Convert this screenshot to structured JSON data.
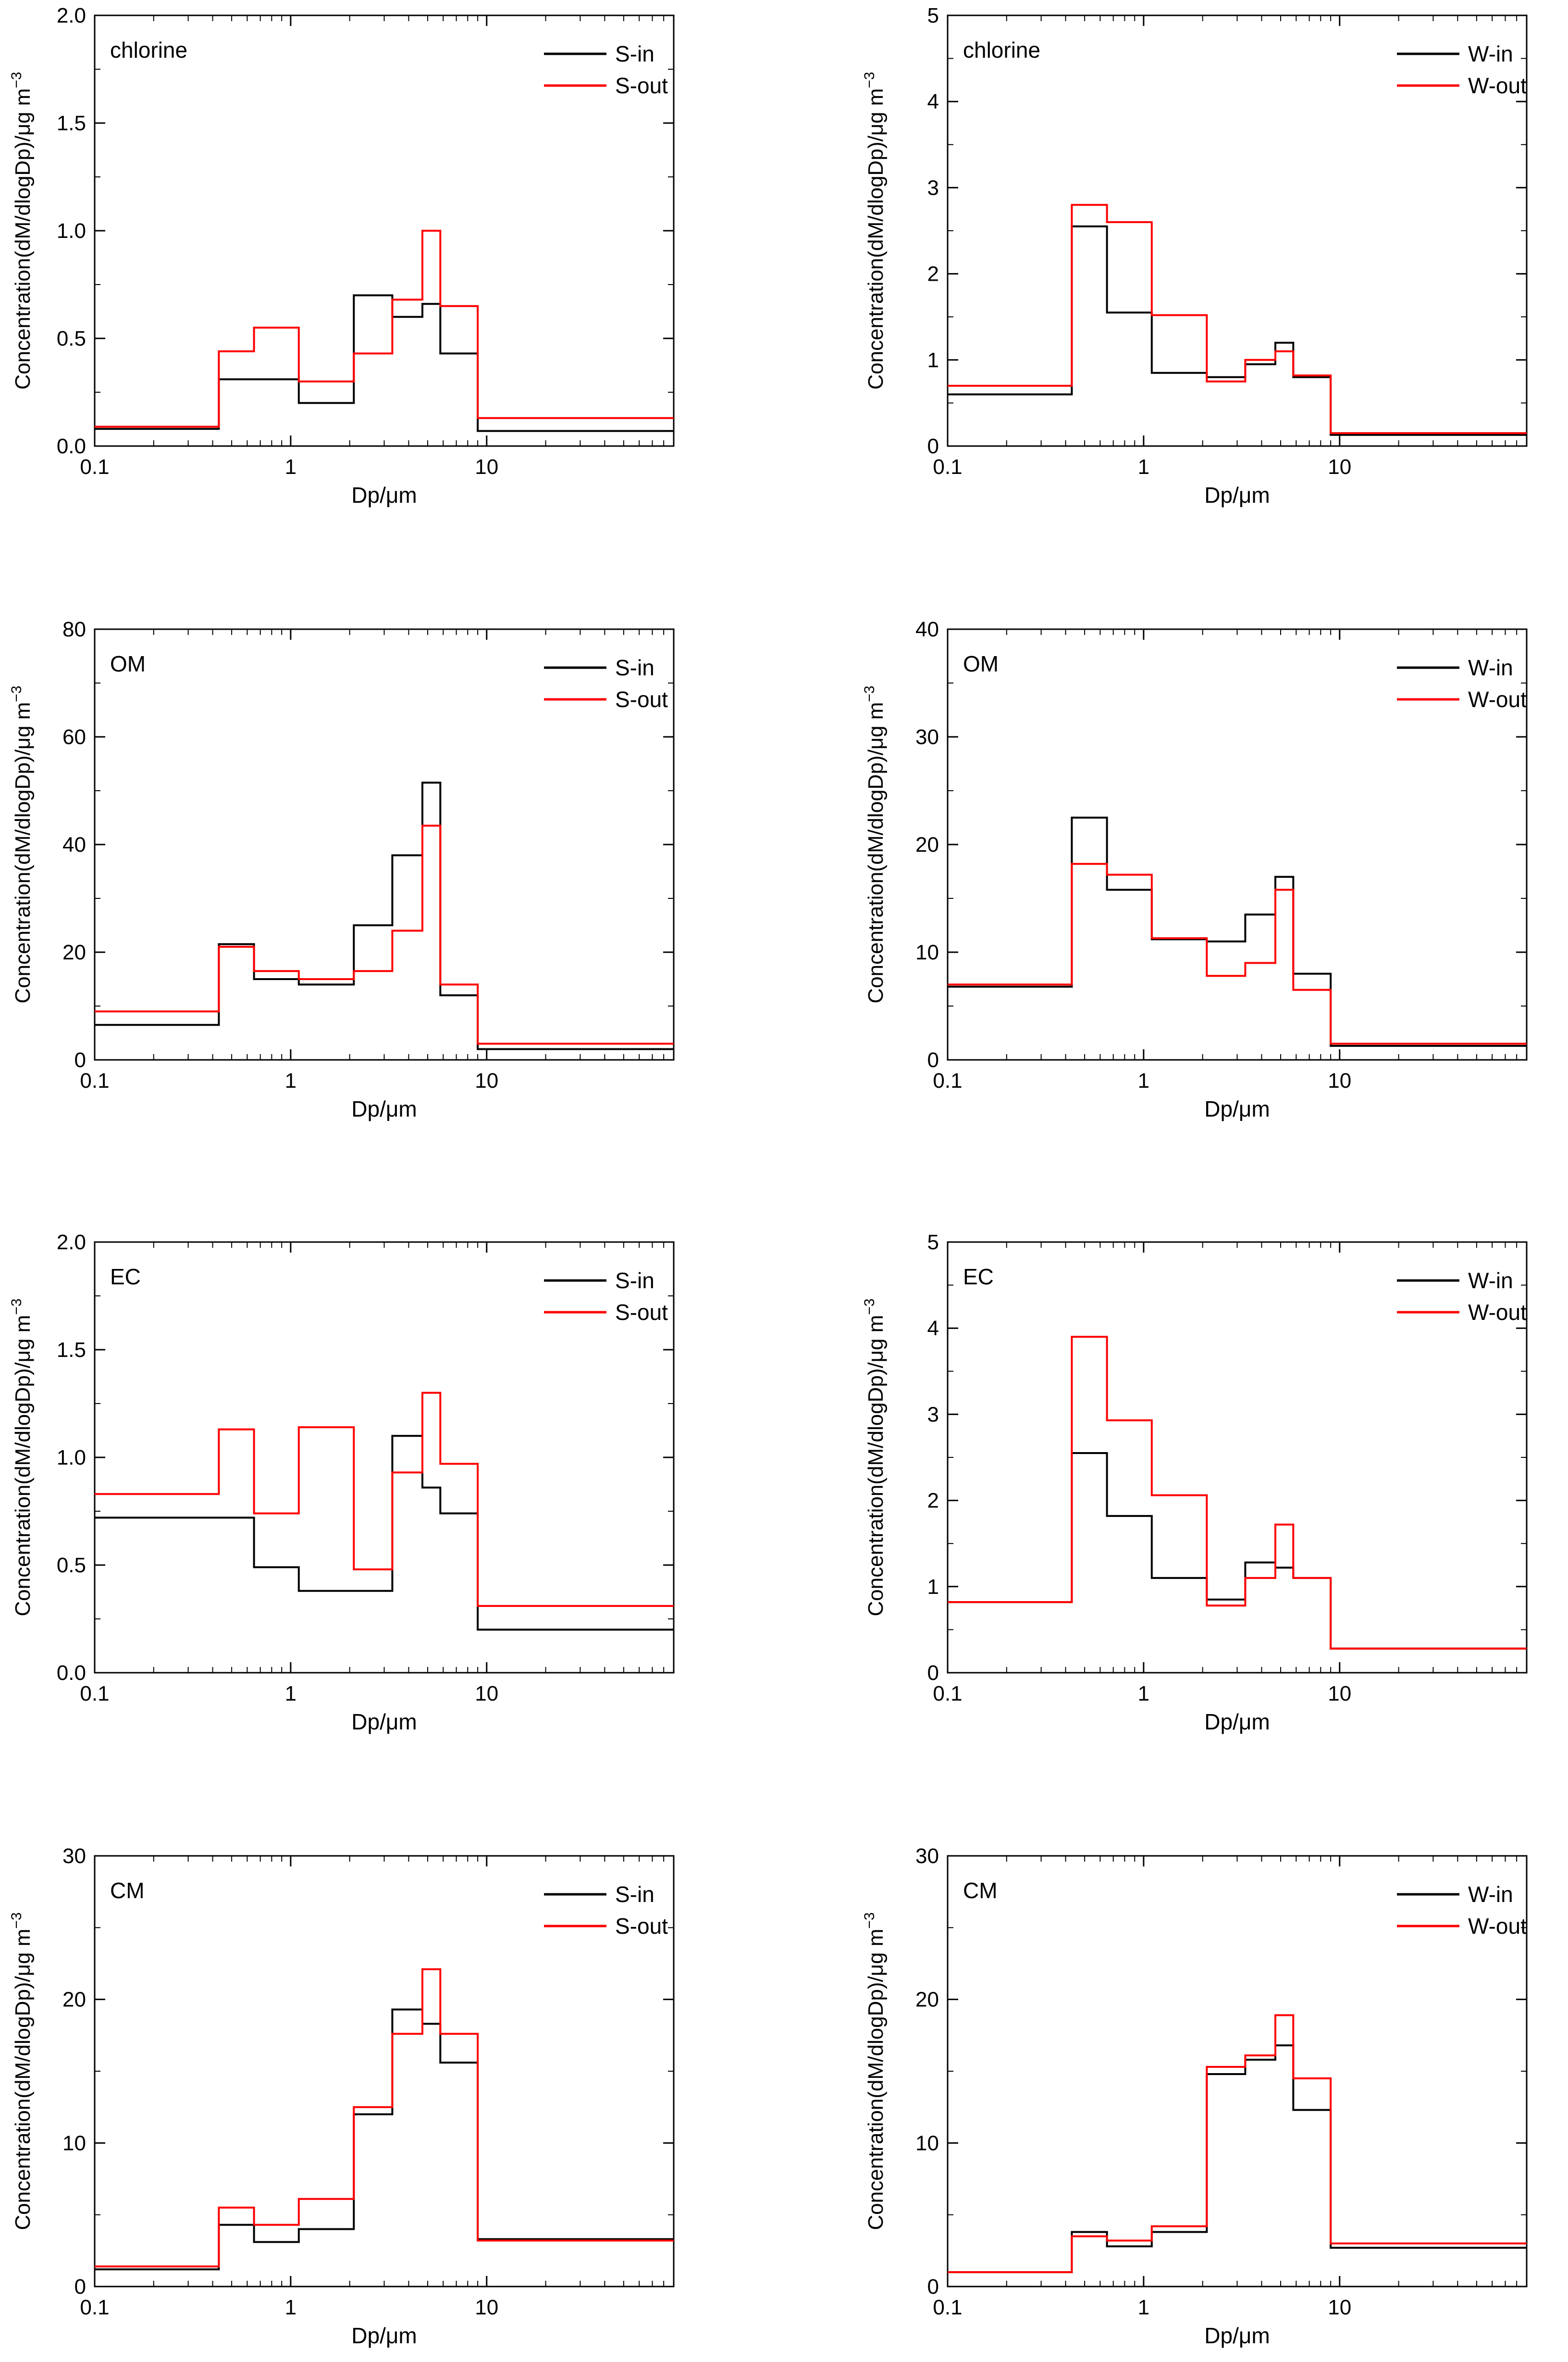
{
  "figure": {
    "x_label": "Dp/μm",
    "y_label_main": "Concentration(dM/dlogDp)/μg m",
    "y_label_sup": "−3"
  },
  "chart_data": [
    {
      "type": "line",
      "step": true,
      "title": "chlorine",
      "x_scale": "log",
      "xlim": [
        0.1,
        90
      ],
      "x_ticks": [
        "0.1",
        "1",
        "10"
      ],
      "ylim": [
        0,
        2.0
      ],
      "y_ticks": [
        "0.0",
        "0.5",
        "1.0",
        "1.5",
        "2.0"
      ],
      "xlabel": "Dp/μm",
      "ylabel": "Concentration(dM/dlogDp)/μg m−3",
      "bin_edges": [
        0.1,
        0.43,
        0.65,
        1.1,
        2.1,
        3.3,
        4.7,
        5.8,
        9.0,
        90
      ],
      "series": [
        {
          "name": "S-in",
          "color": "#000000",
          "values": [
            0.08,
            0.31,
            0.31,
            0.2,
            0.7,
            0.6,
            0.66,
            0.43,
            0.07
          ]
        },
        {
          "name": "S-out",
          "color": "#ff0000",
          "values": [
            0.09,
            0.44,
            0.55,
            0.3,
            0.43,
            0.68,
            1.0,
            0.65,
            0.13
          ]
        }
      ]
    },
    {
      "type": "line",
      "step": true,
      "title": "chlorine",
      "x_scale": "log",
      "xlim": [
        0.1,
        90
      ],
      "x_ticks": [
        "0.1",
        "1",
        "10"
      ],
      "ylim": [
        0,
        5
      ],
      "y_ticks": [
        "0",
        "1",
        "2",
        "3",
        "4",
        "5"
      ],
      "xlabel": "Dp/μm",
      "ylabel": "Concentration(dM/dlogDp)/μg m−3",
      "bin_edges": [
        0.1,
        0.43,
        0.65,
        1.1,
        2.1,
        3.3,
        4.7,
        5.8,
        9.0,
        90
      ],
      "series": [
        {
          "name": "W-in",
          "color": "#000000",
          "values": [
            0.6,
            2.55,
            1.55,
            0.85,
            0.8,
            0.95,
            1.2,
            0.8,
            0.13
          ]
        },
        {
          "name": "W-out",
          "color": "#ff0000",
          "values": [
            0.7,
            2.8,
            2.6,
            1.52,
            0.75,
            1.0,
            1.1,
            0.82,
            0.15
          ]
        }
      ]
    },
    {
      "type": "line",
      "step": true,
      "title": "OM",
      "x_scale": "log",
      "xlim": [
        0.1,
        90
      ],
      "x_ticks": [
        "0.1",
        "1",
        "10"
      ],
      "ylim": [
        0,
        80
      ],
      "y_ticks": [
        "0",
        "20",
        "40",
        "60",
        "80"
      ],
      "xlabel": "Dp/μm",
      "ylabel": "Concentration(dM/dlogDp)/μg m−3",
      "bin_edges": [
        0.1,
        0.43,
        0.65,
        1.1,
        2.1,
        3.3,
        4.7,
        5.8,
        9.0,
        90
      ],
      "series": [
        {
          "name": "S-in",
          "color": "#000000",
          "values": [
            6.5,
            21.5,
            15.0,
            14.0,
            25.0,
            38.0,
            51.5,
            12.0,
            2.0
          ]
        },
        {
          "name": "S-out",
          "color": "#ff0000",
          "values": [
            9.0,
            21.0,
            16.5,
            15.0,
            16.5,
            24.0,
            43.5,
            14.0,
            3.0
          ]
        }
      ]
    },
    {
      "type": "line",
      "step": true,
      "title": "OM",
      "x_scale": "log",
      "xlim": [
        0.1,
        90
      ],
      "x_ticks": [
        "0.1",
        "1",
        "10"
      ],
      "ylim": [
        0,
        40
      ],
      "y_ticks": [
        "0",
        "10",
        "20",
        "30",
        "40"
      ],
      "xlabel": "Dp/μm",
      "ylabel": "Concentration(dM/dlogDp)/μg m−3",
      "bin_edges": [
        0.1,
        0.43,
        0.65,
        1.1,
        2.1,
        3.3,
        4.7,
        5.8,
        9.0,
        90
      ],
      "series": [
        {
          "name": "W-in",
          "color": "#000000",
          "values": [
            6.8,
            22.5,
            15.8,
            11.2,
            11.0,
            13.5,
            17.0,
            8.0,
            1.3
          ]
        },
        {
          "name": "W-out",
          "color": "#ff0000",
          "values": [
            7.0,
            18.2,
            17.2,
            11.3,
            7.8,
            9.0,
            15.8,
            6.5,
            1.5
          ]
        }
      ]
    },
    {
      "type": "line",
      "step": true,
      "title": "EC",
      "x_scale": "log",
      "xlim": [
        0.1,
        90
      ],
      "x_ticks": [
        "0.1",
        "1",
        "10"
      ],
      "ylim": [
        0,
        2.0
      ],
      "y_ticks": [
        "0.0",
        "0.5",
        "1.0",
        "1.5",
        "2.0"
      ],
      "xlabel": "Dp/μm",
      "ylabel": "Concentration(dM/dlogDp)/μg m−3",
      "bin_edges": [
        0.1,
        0.43,
        0.65,
        1.1,
        2.1,
        3.3,
        4.7,
        5.8,
        9.0,
        90
      ],
      "series": [
        {
          "name": "S-in",
          "color": "#000000",
          "values": [
            0.72,
            0.72,
            0.49,
            0.38,
            0.38,
            1.1,
            0.86,
            0.74,
            0.2
          ]
        },
        {
          "name": "S-out",
          "color": "#ff0000",
          "values": [
            0.83,
            1.13,
            0.74,
            1.14,
            0.48,
            0.93,
            1.3,
            0.97,
            0.31
          ]
        }
      ]
    },
    {
      "type": "line",
      "step": true,
      "title": "EC",
      "x_scale": "log",
      "xlim": [
        0.1,
        90
      ],
      "x_ticks": [
        "0.1",
        "1",
        "10"
      ],
      "ylim": [
        0,
        5
      ],
      "y_ticks": [
        "0",
        "1",
        "2",
        "3",
        "4",
        "5"
      ],
      "xlabel": "Dp/μm",
      "ylabel": "Concentration(dM/dlogDp)/μg m−3",
      "bin_edges": [
        0.1,
        0.43,
        0.65,
        1.1,
        2.1,
        3.3,
        4.7,
        5.8,
        9.0,
        90
      ],
      "series": [
        {
          "name": "W-in",
          "color": "#000000",
          "values": [
            0.82,
            2.55,
            1.82,
            1.1,
            0.85,
            1.28,
            1.22,
            1.1,
            0.28
          ]
        },
        {
          "name": "W-out",
          "color": "#ff0000",
          "values": [
            0.82,
            3.9,
            2.93,
            2.06,
            0.78,
            1.1,
            1.72,
            1.1,
            0.28
          ]
        }
      ]
    },
    {
      "type": "line",
      "step": true,
      "title": "CM",
      "x_scale": "log",
      "xlim": [
        0.1,
        90
      ],
      "x_ticks": [
        "0.1",
        "1",
        "10"
      ],
      "ylim": [
        0,
        30
      ],
      "y_ticks": [
        "0",
        "10",
        "20",
        "30"
      ],
      "xlabel": "Dp/μm",
      "ylabel": "Concentration(dM/dlogDp)/μg m−3",
      "bin_edges": [
        0.1,
        0.43,
        0.65,
        1.1,
        2.1,
        3.3,
        4.7,
        5.8,
        9.0,
        90
      ],
      "series": [
        {
          "name": "S-in",
          "color": "#000000",
          "values": [
            1.2,
            4.3,
            3.1,
            4.0,
            12.0,
            19.3,
            18.3,
            15.6,
            3.3
          ]
        },
        {
          "name": "S-out",
          "color": "#ff0000",
          "values": [
            1.4,
            5.5,
            4.3,
            6.1,
            12.5,
            17.6,
            22.1,
            17.6,
            3.2
          ]
        }
      ]
    },
    {
      "type": "line",
      "step": true,
      "title": "CM",
      "x_scale": "log",
      "xlim": [
        0.1,
        90
      ],
      "x_ticks": [
        "0.1",
        "1",
        "10"
      ],
      "ylim": [
        0,
        30
      ],
      "y_ticks": [
        "0",
        "10",
        "20",
        "30"
      ],
      "xlabel": "Dp/μm",
      "ylabel": "Concentration(dM/dlogDp)/μg m−3",
      "bin_edges": [
        0.1,
        0.43,
        0.65,
        1.1,
        2.1,
        3.3,
        4.7,
        5.8,
        9.0,
        90
      ],
      "series": [
        {
          "name": "W-in",
          "color": "#000000",
          "values": [
            1.0,
            3.8,
            2.8,
            3.8,
            14.8,
            15.8,
            16.8,
            12.3,
            2.7
          ]
        },
        {
          "name": "W-out",
          "color": "#ff0000",
          "values": [
            1.0,
            3.5,
            3.2,
            4.2,
            15.3,
            16.1,
            18.9,
            14.5,
            3.0
          ]
        }
      ]
    }
  ]
}
